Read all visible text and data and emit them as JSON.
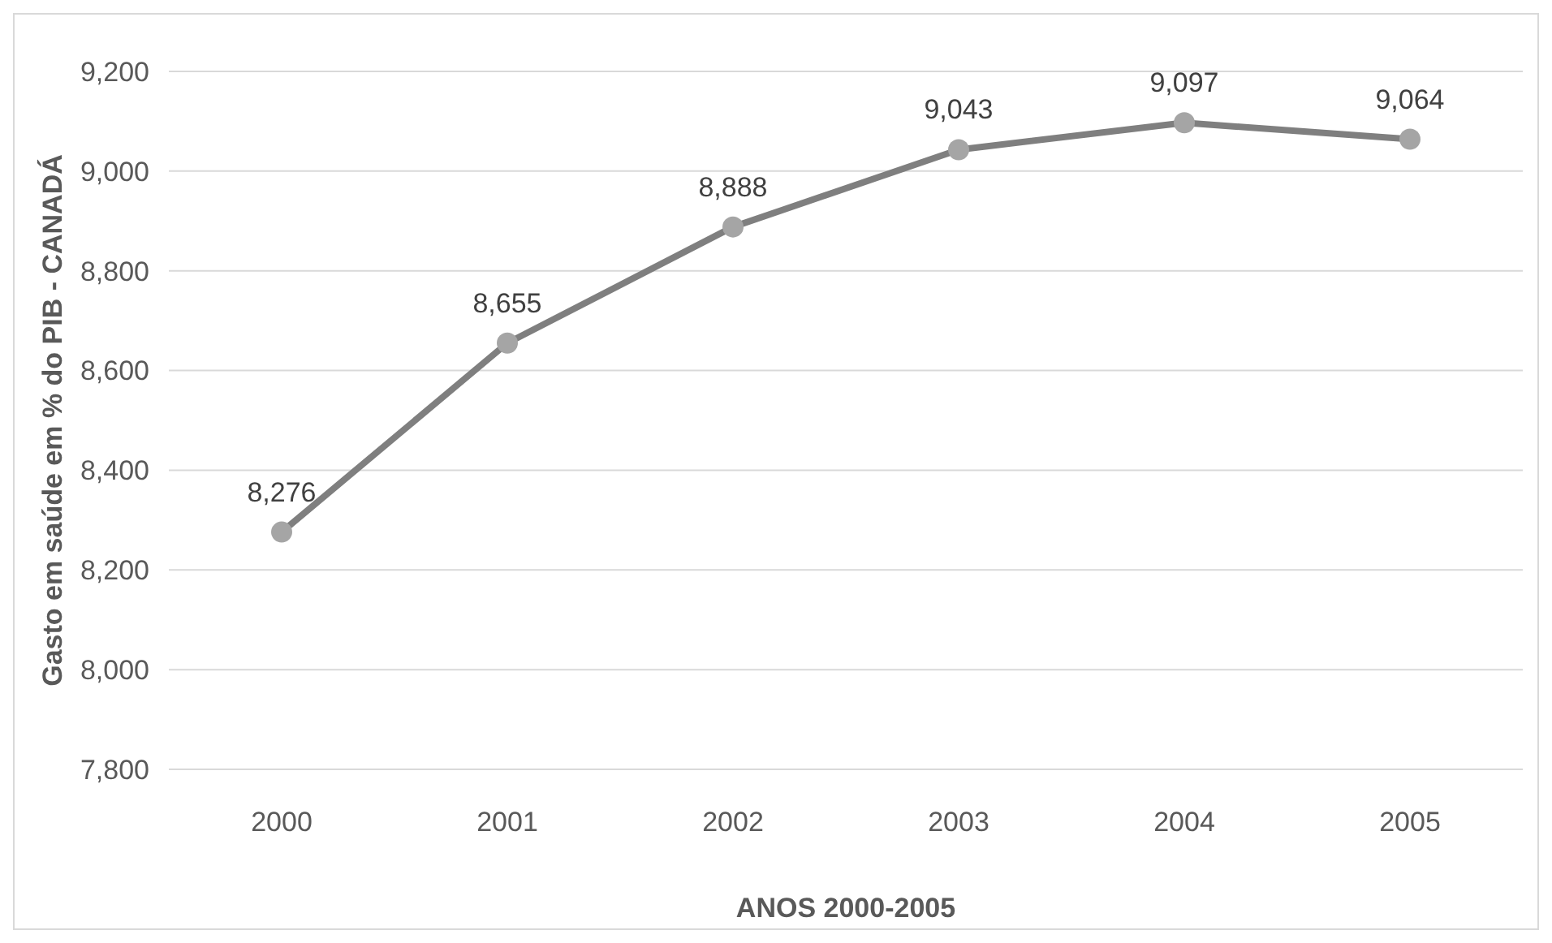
{
  "chart_data": {
    "type": "line",
    "xlabel": "ANOS 2000-2005",
    "ylabel": "Gasto em saúde em % do PIB - CANADÁ",
    "categories": [
      "2000",
      "2001",
      "2002",
      "2003",
      "2004",
      "2005"
    ],
    "series": [
      {
        "color": "#7f7f7f",
        "values": [
          8276,
          8655,
          8888,
          9043,
          9097,
          9064
        ],
        "value_labels": [
          "8,276",
          "8,655",
          "8,888",
          "9,043",
          "9,097",
          "9,064"
        ]
      }
    ],
    "ylim": [
      7800,
      9200
    ],
    "yticks": [
      {
        "value": 7800,
        "label": "7,800"
      },
      {
        "value": 8000,
        "label": "8,000"
      },
      {
        "value": 8200,
        "label": "8,200"
      },
      {
        "value": 8400,
        "label": "8,400"
      },
      {
        "value": 8600,
        "label": "8,600"
      },
      {
        "value": 8800,
        "label": "8,800"
      },
      {
        "value": 9000,
        "label": "9,000"
      },
      {
        "value": 9200,
        "label": "9,200"
      }
    ],
    "grid": "y",
    "marker": "circle",
    "line_style": "solid"
  }
}
